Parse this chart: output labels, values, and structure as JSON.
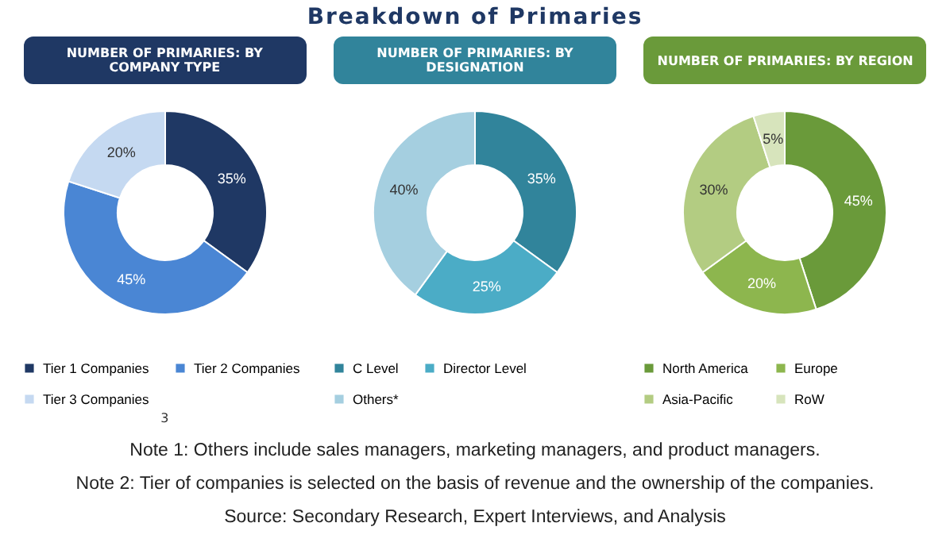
{
  "chart_data": [
    {
      "type": "other",
      "title": "Breakdown of Primaries"
    },
    {
      "type": "donut",
      "title": "NUMBER OF PRIMARIES: BY COMPANY TYPE",
      "categories": [
        "Tier 1 Companies",
        "Tier 2 Companies",
        "Tier 3 Companies"
      ],
      "values": [
        35,
        45,
        20
      ],
      "value_labels": [
        "35%",
        "45%",
        "20%"
      ],
      "colors": [
        "#1f3864",
        "#4a86d4",
        "#c5d9f1"
      ],
      "legend": "bottom",
      "annotations": [
        "3"
      ]
    },
    {
      "type": "donut",
      "title": "NUMBER OF PRIMARIES: BY DESIGNATION",
      "categories": [
        "C Level",
        "Director Level",
        "Others*"
      ],
      "values": [
        35,
        25,
        40
      ],
      "value_labels": [
        "35%",
        "25%",
        "40%"
      ],
      "colors": [
        "#31849b",
        "#4bacc6",
        "#a5cfe0"
      ],
      "legend": "bottom"
    },
    {
      "type": "donut",
      "title": "NUMBER OF PRIMARIES: BY REGION",
      "categories": [
        "North America",
        "Europe",
        "Asia-Pacific",
        "RoW"
      ],
      "values": [
        45,
        20,
        30,
        5
      ],
      "value_labels": [
        "45%",
        "20%",
        "30%",
        "5%"
      ],
      "colors": [
        "#6a9a3a",
        "#8db64e",
        "#b3cc82",
        "#d7e4bc"
      ],
      "legend": "bottom"
    },
    {
      "type": "other",
      "annotations": [
        "Note 1: Others include sales managers, marketing managers, and product managers.",
        "Note 2: Tier of companies is selected on the basis of revenue and the ownership of the companies.",
        "Source: Secondary Research, Expert Interviews, and Analysis"
      ]
    }
  ]
}
